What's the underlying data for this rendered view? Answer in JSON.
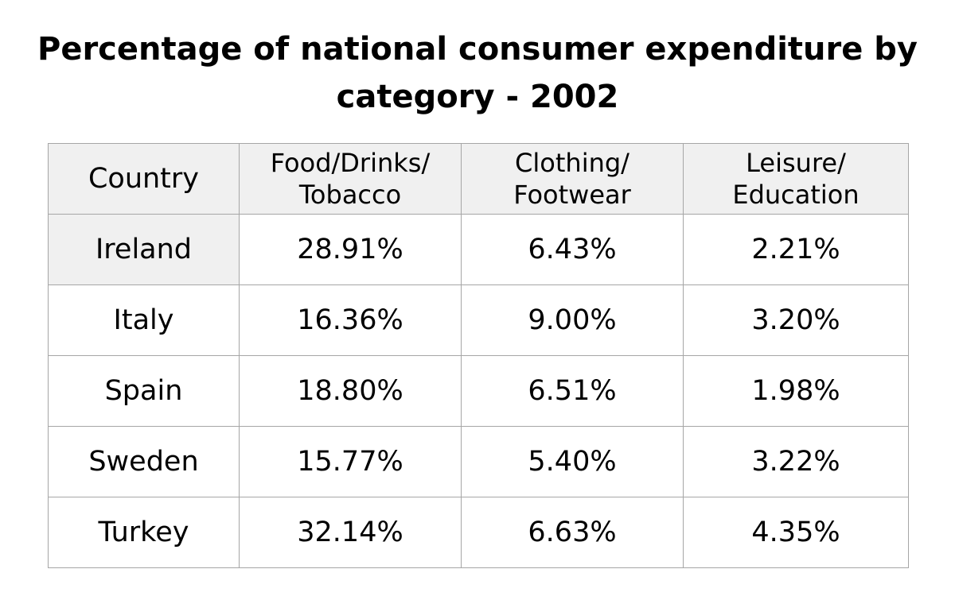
{
  "title_lines": [
    "Percentage of national consumer expenditure by",
    "category - 2002"
  ],
  "chart_data": {
    "type": "table",
    "title": "Percentage of national consumer expenditure by category - 2002",
    "columns": [
      {
        "label_lines": [
          "Country"
        ]
      },
      {
        "label_lines": [
          "Food/Drinks/",
          "Tobacco"
        ]
      },
      {
        "label_lines": [
          "Clothing/",
          "Footwear"
        ]
      },
      {
        "label_lines": [
          "Leisure/",
          "Education"
        ]
      }
    ],
    "rows": [
      {
        "country": "Ireland",
        "values": [
          "28.91%",
          "6.43%",
          "2.21%"
        ]
      },
      {
        "country": "Italy",
        "values": [
          "16.36%",
          "9.00%",
          "3.20%"
        ]
      },
      {
        "country": "Spain",
        "values": [
          "18.80%",
          "6.51%",
          "1.98%"
        ]
      },
      {
        "country": "Sweden",
        "values": [
          "15.77%",
          "5.40%",
          "3.22%"
        ]
      },
      {
        "country": "Turkey",
        "values": [
          "32.14%",
          "6.63%",
          "4.35%"
        ]
      }
    ],
    "colors": {
      "header_bg": "#f0f0f0",
      "border": "#a6a6a6"
    }
  }
}
